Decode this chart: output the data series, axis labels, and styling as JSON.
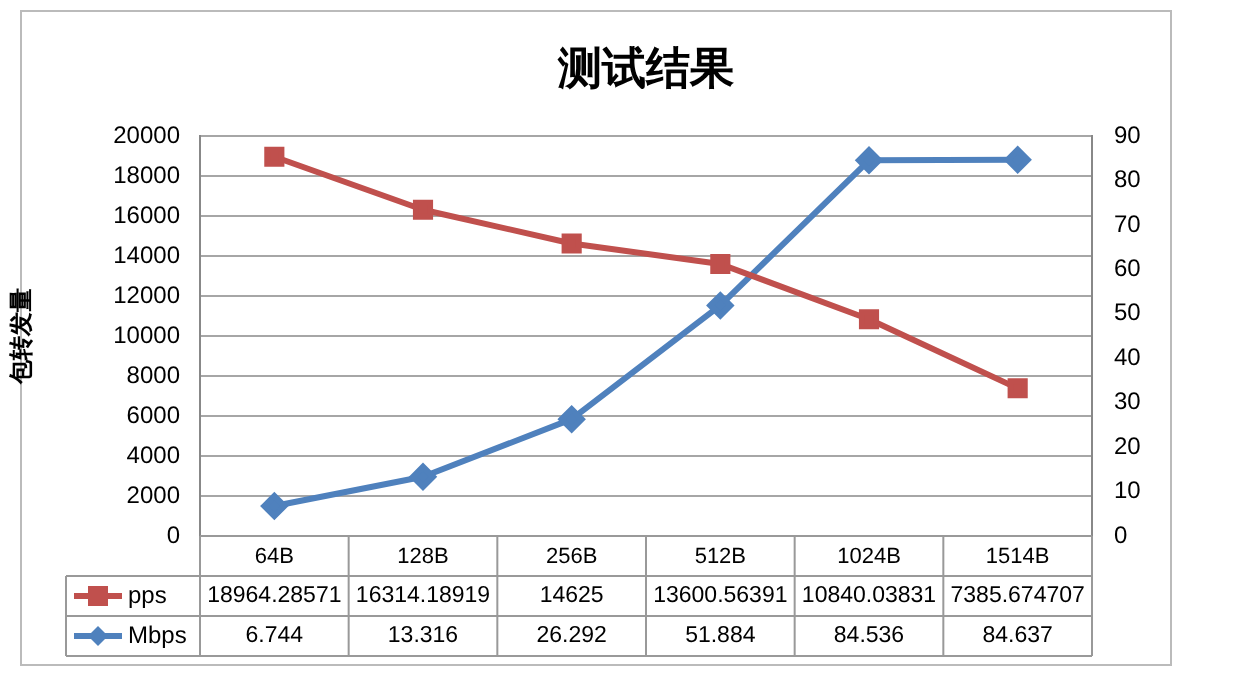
{
  "chart_data": {
    "type": "line",
    "title": "测试结果",
    "ylabel": "包转发量",
    "categories": [
      "64B",
      "128B",
      "256B",
      "512B",
      "1024B",
      "1514B"
    ],
    "series": [
      {
        "name": "pps",
        "color": "#c0504d",
        "marker": "square",
        "values": [
          18964.28571,
          16314.18919,
          14625,
          13600.56391,
          10840.03831,
          7385.674707
        ]
      },
      {
        "name": "Mbps",
        "color": "#4f81bd",
        "marker": "diamond",
        "axis": "y2",
        "values": [
          6.744,
          13.316,
          26.292,
          51.884,
          84.536,
          84.637
        ]
      }
    ],
    "ylim": [
      0,
      20000
    ],
    "yticks": [
      0,
      2000,
      4000,
      6000,
      8000,
      10000,
      12000,
      14000,
      16000,
      18000,
      20000
    ],
    "y2lim": [
      0,
      90
    ],
    "y2ticks": [
      0,
      10,
      20,
      30,
      40,
      50,
      60,
      70,
      80,
      90
    ],
    "grid": "y",
    "legend": "bottom",
    "data_labels": true
  }
}
